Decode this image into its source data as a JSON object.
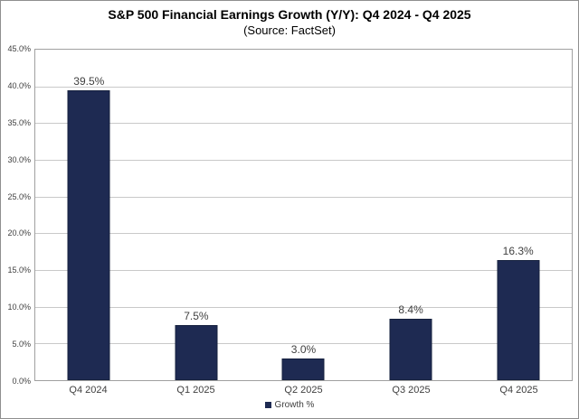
{
  "chart_data": {
    "type": "bar",
    "title": "S&P 500 Financial Earnings Growth (Y/Y): Q4 2024 - Q4 2025",
    "subtitle": "(Source: FactSet)",
    "categories": [
      "Q4 2024",
      "Q1 2025",
      "Q2 2025",
      "Q3 2025",
      "Q4 2025"
    ],
    "series": [
      {
        "name": "Growth %",
        "values": [
          39.5,
          7.5,
          3.0,
          8.4,
          16.3
        ]
      }
    ],
    "value_labels": [
      "39.5%",
      "7.5%",
      "3.0%",
      "8.4%",
      "16.3%"
    ],
    "ylim": [
      0,
      45
    ],
    "ytick_step": 5,
    "ytick_labels": [
      "45.0%",
      "40.0%",
      "35.0%",
      "30.0%",
      "25.0%",
      "20.0%",
      "15.0%",
      "10.0%",
      "5.0%",
      "0.0%"
    ],
    "grid": true,
    "legend": {
      "label": "Growth %",
      "position": "bottom"
    },
    "colors": {
      "bar": "#1e2a52",
      "bar_border": "#15203e",
      "gridline": "#c9c9c9",
      "plot_border": "#a0a0a0",
      "label_text": "#3f3f3f",
      "title_text": "#000000"
    }
  }
}
